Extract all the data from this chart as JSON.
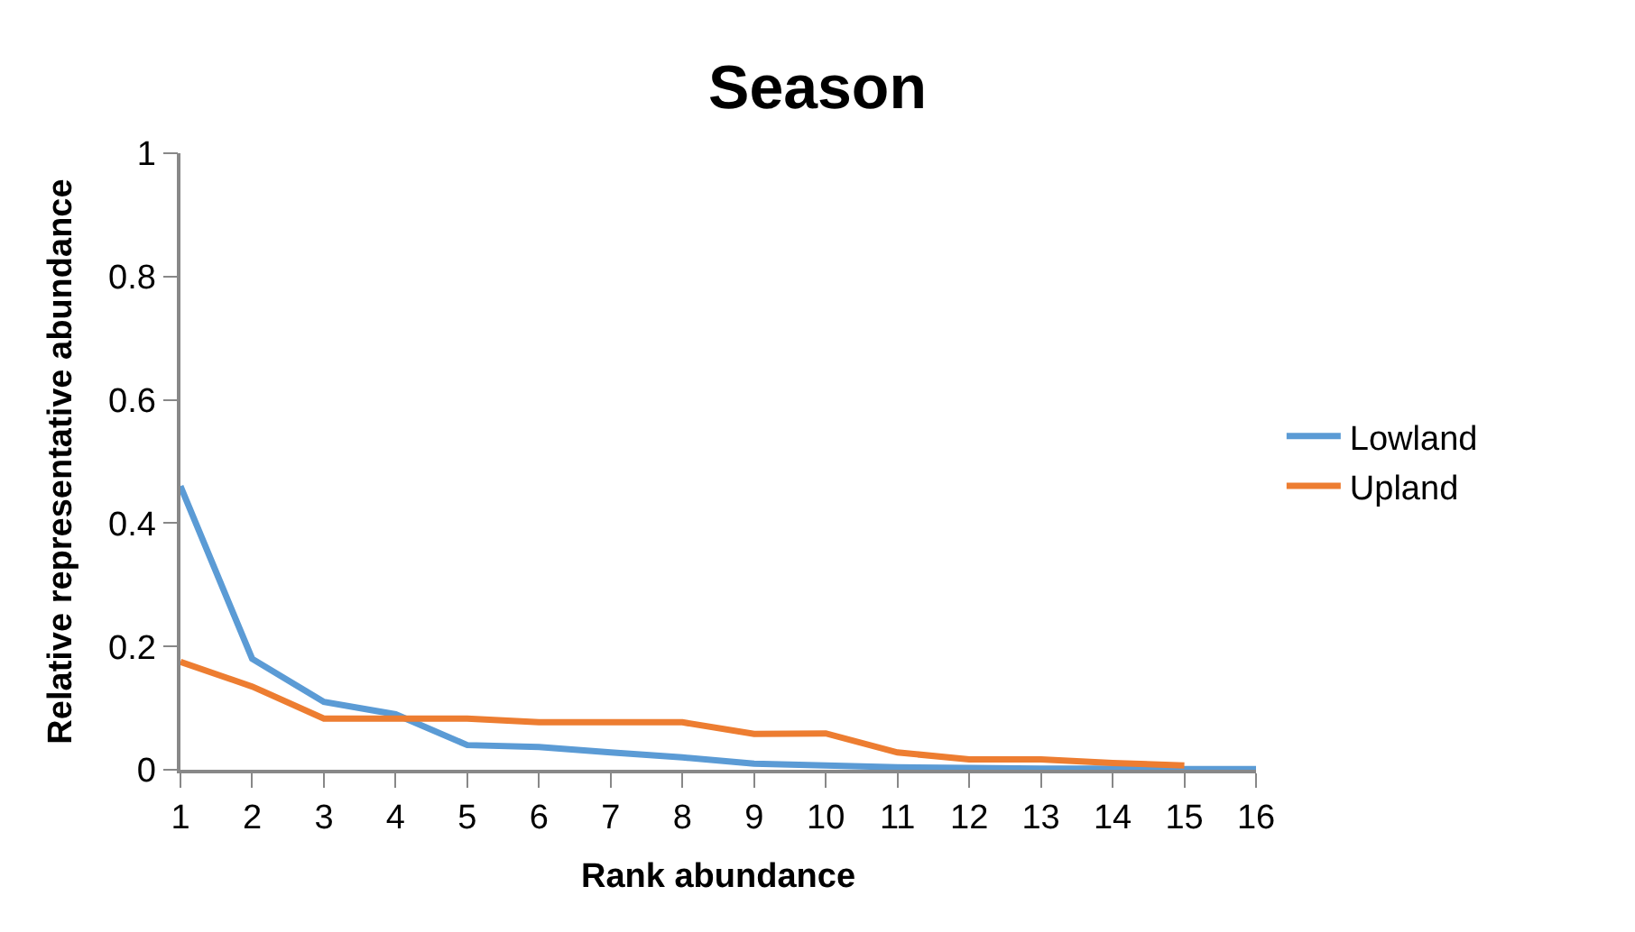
{
  "chart_data": {
    "type": "line",
    "title": "Season",
    "xlabel": "Rank abundance",
    "ylabel": "Relative representative abundance",
    "x": [
      1,
      2,
      3,
      4,
      5,
      6,
      7,
      8,
      9,
      10,
      11,
      12,
      13,
      14,
      15,
      16
    ],
    "series": [
      {
        "name": "Lowland",
        "color": "#5b9bd5",
        "values": [
          0.46,
          0.18,
          0.11,
          0.09,
          0.04,
          0.037,
          0.028,
          0.02,
          0.01,
          0.007,
          0.004,
          0.003,
          0.002,
          0.002,
          0.001,
          0.001
        ]
      },
      {
        "name": "Upland",
        "color": "#ed7d31",
        "values": [
          0.175,
          0.135,
          0.083,
          0.083,
          0.083,
          0.077,
          0.077,
          0.077,
          0.058,
          0.059,
          0.028,
          0.017,
          0.017,
          0.011,
          0.007,
          null
        ]
      }
    ],
    "xlim": [
      1,
      16
    ],
    "xticks": [
      1,
      2,
      3,
      4,
      5,
      6,
      7,
      8,
      9,
      10,
      11,
      12,
      13,
      14,
      15,
      16
    ],
    "ylim": [
      0,
      1
    ],
    "yticks": [
      0,
      0.2,
      0.4,
      0.6,
      0.8,
      1
    ],
    "legend": "right",
    "marker": "none",
    "line_style": "solid"
  }
}
